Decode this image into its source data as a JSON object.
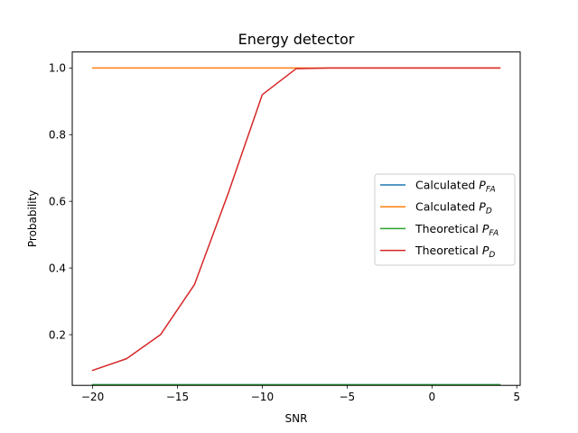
{
  "chart_data": {
    "type": "line",
    "title": "Energy detector",
    "xlabel": "SNR",
    "ylabel": "Probability",
    "xlim": [
      -21.2,
      5.2
    ],
    "ylim": [
      0.048,
      1.048
    ],
    "x_ticks": [
      -20,
      -15,
      -10,
      -5,
      0,
      5
    ],
    "x_tick_labels": [
      "−20",
      "−15",
      "−10",
      "−5",
      "0",
      "5"
    ],
    "y_ticks": [
      0.2,
      0.4,
      0.6,
      0.8,
      1.0
    ],
    "y_tick_labels": [
      "0.2",
      "0.4",
      "0.6",
      "0.8",
      "1.0"
    ],
    "grid": false,
    "legend_position": "center-right",
    "x": [
      -20,
      -18,
      -16,
      -14,
      -12,
      -10,
      -8,
      -6,
      -4,
      -2,
      0,
      2,
      4
    ],
    "series": [
      {
        "name": "Calculated P",
        "subscript": "FA",
        "color": "#1f77b4",
        "values": [
          0.05,
          0.05,
          0.05,
          0.05,
          0.05,
          0.05,
          0.05,
          0.05,
          0.05,
          0.05,
          0.05,
          0.05,
          0.05
        ]
      },
      {
        "name": "Calculated P",
        "subscript": "D",
        "color": "#ff7f0e",
        "values": [
          1.0,
          1.0,
          1.0,
          1.0,
          1.0,
          1.0,
          1.0,
          1.0,
          1.0,
          1.0,
          1.0,
          1.0,
          1.0
        ]
      },
      {
        "name": "Theoretical P",
        "subscript": "FA",
        "color": "#2ca02c",
        "values": [
          0.05,
          0.05,
          0.05,
          0.05,
          0.05,
          0.05,
          0.05,
          0.05,
          0.05,
          0.05,
          0.05,
          0.05,
          0.05
        ]
      },
      {
        "name": "Theoretical P",
        "subscript": "D",
        "color": "#d62728",
        "values": [
          0.093,
          0.128,
          0.2,
          0.35,
          0.625,
          0.92,
          0.998,
          1.0,
          1.0,
          1.0,
          1.0,
          1.0,
          1.0
        ]
      }
    ]
  }
}
